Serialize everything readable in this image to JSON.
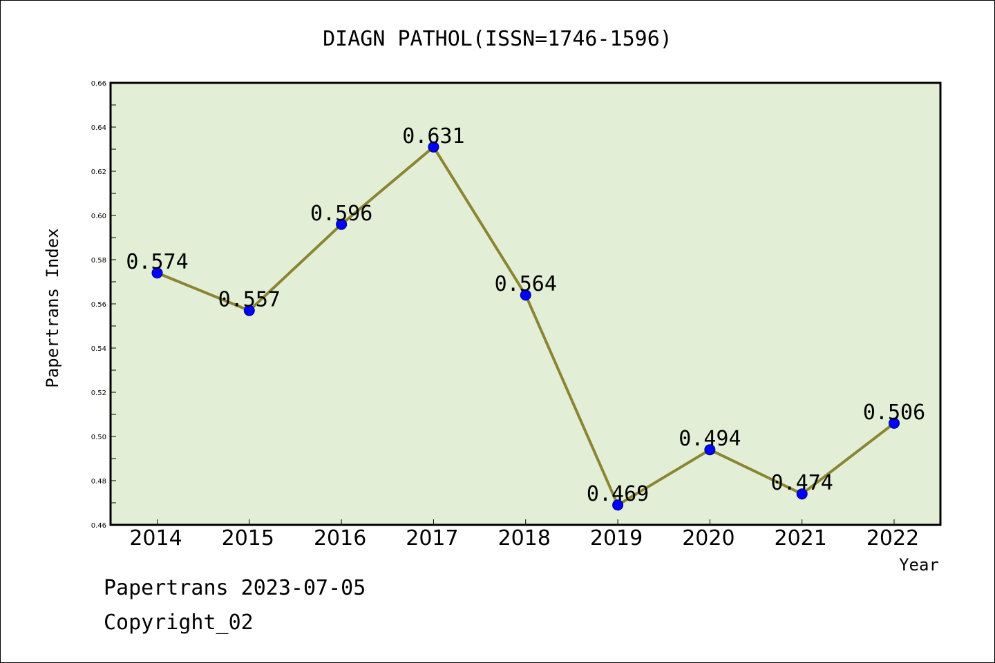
{
  "chart_data": {
    "type": "line",
    "title": "DIAGN PATHOL(ISSN=1746-1596)",
    "xlabel": "Year",
    "ylabel": "Papertrans Index",
    "categories": [
      "2014",
      "2015",
      "2016",
      "2017",
      "2018",
      "2019",
      "2020",
      "2021",
      "2022"
    ],
    "series": [
      {
        "values": [
          0.574,
          0.557,
          0.596,
          0.631,
          0.564,
          0.469,
          0.494,
          0.474,
          0.506
        ],
        "labels": [
          "0.574",
          "0.557",
          "0.596",
          "0.631",
          "0.564",
          "0.469",
          "0.494",
          "0.474",
          "0.506"
        ]
      }
    ],
    "ylim": [
      0.46,
      0.66
    ],
    "yticks": [
      "0.46",
      "0.48",
      "0.50",
      "0.52",
      "0.54",
      "0.56",
      "0.58",
      "0.60",
      "0.62",
      "0.64",
      "0.66"
    ],
    "grid": false,
    "colors": {
      "plot_background": "#e2efd6",
      "line": "#8b8432",
      "marker": "#0000ff"
    }
  },
  "footer": {
    "line1": "Papertrans 2023-07-05",
    "line2": "Copyright_02"
  }
}
